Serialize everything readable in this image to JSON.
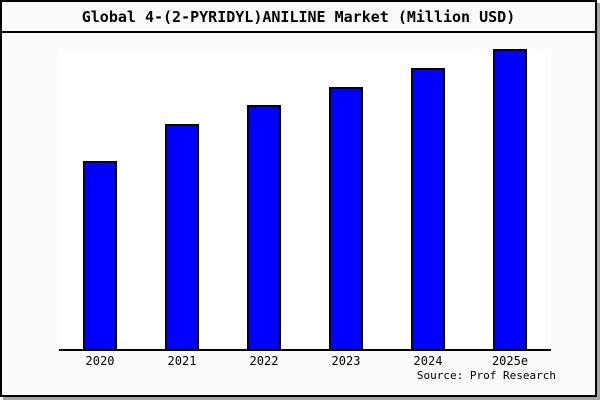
{
  "source": "Source: Prof Research",
  "colors": {
    "bar_fill": "#0000ff",
    "bar_outline": "#000000",
    "background": "#fafafa",
    "plot_background": "#ffffff",
    "frame_border": "#000000",
    "frame_shadow": "#a6a6a6",
    "axis_line": "#000000",
    "text": "#000000"
  },
  "chart_data": {
    "type": "bar",
    "title": "Global 4-(2-PYRIDYL)ANILINE Market (Million USD)",
    "categories": [
      "2020",
      "2021",
      "2022",
      "2023",
      "2024",
      "2025e"
    ],
    "values": [
      188,
      225,
      244,
      262,
      281,
      300
    ],
    "values_note": "No y-axis ticks/labels are visible in the image; values are relative bar heights estimated in pixels from the axis baseline.",
    "xlabel": "",
    "ylabel": "",
    "ylim": [
      0,
      300
    ],
    "y_axis_visible": false,
    "grid": false,
    "legend_position": "none",
    "bar_color": "#0000ff",
    "bar_border_color": "#000000"
  }
}
